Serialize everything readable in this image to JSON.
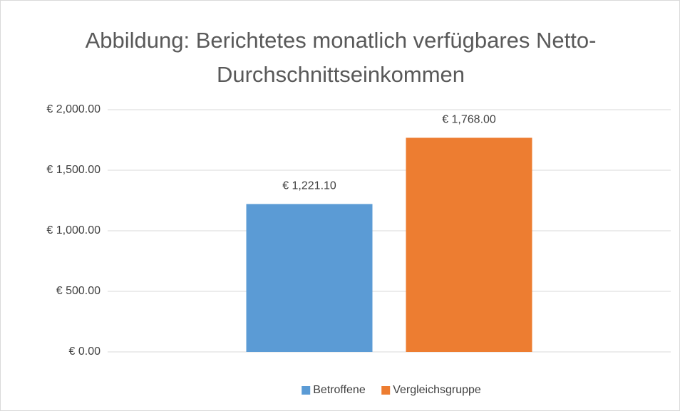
{
  "chart_data": {
    "type": "bar",
    "title": "Abbildung: Berichtetes monatlich verfügbares Netto-Durchschnittseinkommen",
    "categories": [
      null
    ],
    "series": [
      {
        "name": "Betroffene",
        "color": "#5b9bd5",
        "values": [
          1221.1
        ],
        "value_labels": [
          "€ 1,221.10"
        ]
      },
      {
        "name": "Vergleichsgruppe",
        "color": "#ed7d31",
        "values": [
          1768
        ],
        "value_labels": [
          "€ 1,768.00"
        ]
      }
    ],
    "ylim": [
      0,
      2000
    ],
    "yticks": [
      {
        "value": 0,
        "label": "€ 0.00"
      },
      {
        "value": 500,
        "label": "€ 500.00"
      },
      {
        "value": 1000,
        "label": "€ 1,000.00"
      },
      {
        "value": 1500,
        "label": "€ 1,500.00"
      },
      {
        "value": 2000,
        "label": "€ 2,000.00"
      }
    ],
    "grid": true,
    "legend": "bottom"
  }
}
